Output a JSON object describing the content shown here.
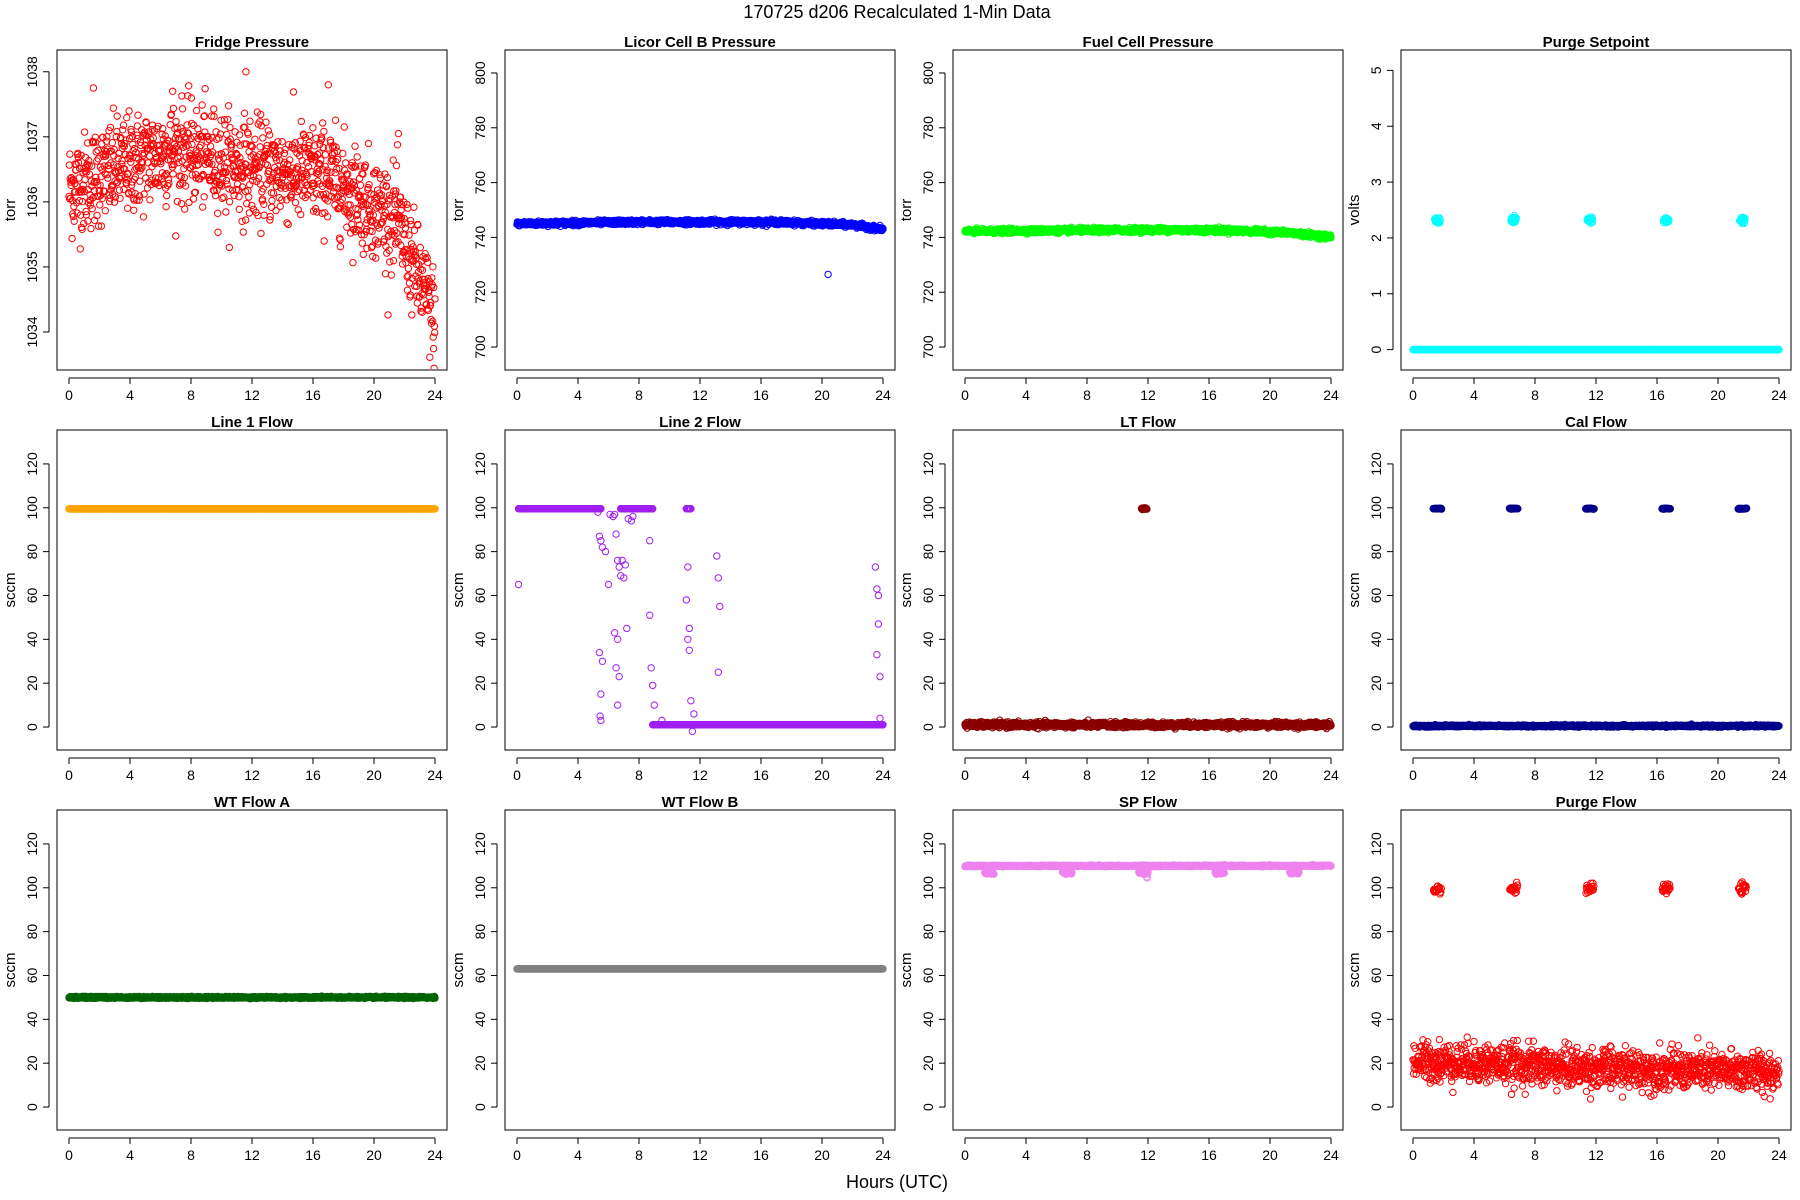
{
  "figure": {
    "title": "170725   d206   Recalculated 1-Min Data",
    "xlabel": "Hours (UTC)"
  },
  "chart_data": [
    {
      "type": "scatter",
      "title": "Fridge Pressure",
      "ylabel": "torr",
      "color": "#ff0000",
      "marker": "open",
      "xlim": [
        0,
        24
      ],
      "ylim": [
        1033.6,
        1038.15
      ],
      "xticks": [
        0,
        4,
        8,
        12,
        16,
        20,
        24
      ],
      "yticks": [
        1034,
        1035,
        1036,
        1037,
        1038
      ],
      "series": [
        {
          "kind": "noisy",
          "trend": [
            [
              0,
              1036.2
            ],
            [
              3,
              1036.5
            ],
            [
              7,
              1036.8
            ],
            [
              12,
              1036.5
            ],
            [
              17,
              1036.4
            ],
            [
              21.5,
              1035.7
            ],
            [
              24,
              1034.2
            ]
          ],
          "noise": 0.38,
          "count": 1200
        },
        {
          "kind": "points",
          "x": [
            11.6,
            17.0,
            1.6,
            6.8,
            21.6
          ],
          "y": [
            1038.0,
            1037.8,
            1037.75,
            1037.7,
            1037.05
          ]
        }
      ]
    },
    {
      "type": "scatter",
      "title": "Licor Cell B Pressure",
      "ylabel": "torr",
      "color": "#0000ff",
      "marker": "open",
      "xlim": [
        0,
        24
      ],
      "ylim": [
        696,
        804
      ],
      "xticks": [
        0,
        4,
        8,
        12,
        16,
        20,
        24
      ],
      "yticks": [
        700,
        720,
        740,
        760,
        780,
        800
      ],
      "series": [
        {
          "kind": "band",
          "trend": [
            [
              0,
              745
            ],
            [
              8,
              745.6
            ],
            [
              17,
              745.6
            ],
            [
              22,
              744.6
            ],
            [
              24,
              743
            ]
          ],
          "noise": 0.4,
          "count": 1400
        },
        {
          "kind": "points",
          "x": [
            20.4
          ],
          "y": [
            726.5
          ]
        }
      ]
    },
    {
      "type": "scatter",
      "title": "Fuel Cell Pressure",
      "ylabel": "torr",
      "color": "#00ff00",
      "marker": "open",
      "xlim": [
        0,
        24
      ],
      "ylim": [
        696,
        804
      ],
      "xticks": [
        0,
        4,
        8,
        12,
        16,
        20,
        24
      ],
      "yticks": [
        700,
        720,
        740,
        760,
        780,
        800
      ],
      "series": [
        {
          "kind": "band",
          "trend": [
            [
              0,
              742.2
            ],
            [
              12,
              742.8
            ],
            [
              17,
              742.6
            ],
            [
              21,
              741.8
            ],
            [
              24,
              740.2
            ]
          ],
          "noise": 0.4,
          "count": 1400
        }
      ]
    },
    {
      "type": "scatter",
      "title": "Purge Setpoint",
      "ylabel": "volts",
      "color": "#00ffff",
      "marker": "open",
      "xlim": [
        0,
        24
      ],
      "ylim": [
        -0.15,
        5.15
      ],
      "xticks": [
        0,
        4,
        8,
        12,
        16,
        20,
        24
      ],
      "yticks": [
        0,
        1,
        2,
        3,
        4,
        5
      ],
      "series": [
        {
          "kind": "band",
          "trend": [
            [
              0,
              0
            ],
            [
              24,
              0
            ]
          ],
          "noise": 0.0,
          "count": 1400
        },
        {
          "kind": "cluster",
          "centers": [
            1.6,
            6.6,
            11.6,
            16.6,
            21.6
          ],
          "width": 0.35,
          "y": 2.32,
          "noise": 0.03,
          "count": 18
        }
      ]
    },
    {
      "type": "scatter",
      "title": "Line 1 Flow",
      "ylabel": "sccm",
      "color": "#ffa500",
      "marker": "open",
      "xlim": [
        0,
        24
      ],
      "ylim": [
        -5,
        130
      ],
      "xticks": [
        0,
        4,
        8,
        12,
        16,
        20,
        24
      ],
      "yticks": [
        0,
        20,
        40,
        60,
        80,
        100,
        120
      ],
      "series": [
        {
          "kind": "band",
          "trend": [
            [
              0,
              99.5
            ],
            [
              24,
              99.5
            ]
          ],
          "noise": 0.0,
          "count": 1400
        }
      ]
    },
    {
      "type": "scatter",
      "title": "Line 2 Flow",
      "ylabel": "sccm",
      "color": "#a020f0",
      "marker": "open",
      "xlim": [
        0,
        24
      ],
      "ylim": [
        -5,
        130
      ],
      "xticks": [
        0,
        4,
        8,
        12,
        16,
        20,
        24
      ],
      "yticks": [
        0,
        20,
        40,
        60,
        80,
        100,
        120
      ],
      "series": [
        {
          "kind": "segment",
          "x0": 0.1,
          "x1": 5.5,
          "y": 99.6,
          "count": 330
        },
        {
          "kind": "segment",
          "x0": 6.8,
          "x1": 8.9,
          "y": 99.6,
          "count": 130
        },
        {
          "kind": "segment",
          "x0": 11.1,
          "x1": 11.4,
          "y": 99.6,
          "count": 20
        },
        {
          "kind": "segment",
          "x0": 8.9,
          "x1": 24,
          "y": 1.0,
          "count": 900
        },
        {
          "kind": "points",
          "x": [
            0.1,
            5.3,
            5.4,
            5.5,
            5.6,
            5.8,
            6.0,
            6.1,
            6.3,
            6.4,
            6.5,
            6.6,
            6.7,
            6.8,
            6.9,
            7.0,
            7.1,
            7.2,
            7.3,
            7.5,
            7.6,
            5.4,
            5.5,
            5.6,
            6.4,
            6.6,
            6.7,
            5.45,
            5.5,
            6.5,
            6.6,
            8.7,
            8.7,
            8.8,
            8.9,
            9.0,
            9.5,
            11.1,
            11.2,
            11.3,
            11.2,
            11.3,
            11.4,
            11.6,
            13.1,
            13.2,
            13.3,
            13.2,
            23.5,
            23.6,
            23.7,
            23.7,
            23.8,
            23.6,
            23.8,
            11.5
          ],
          "y": [
            65,
            98,
            87,
            85,
            82,
            80,
            65,
            97,
            96,
            97,
            88,
            76,
            73,
            69,
            76,
            68,
            74,
            45,
            95,
            94,
            96,
            34,
            15,
            30,
            43,
            40,
            23,
            5,
            3,
            27,
            10,
            85,
            51,
            27,
            19,
            10,
            3,
            58,
            73,
            45,
            40,
            35,
            12,
            6,
            78,
            68,
            55,
            25,
            73,
            63,
            60,
            47,
            23,
            33,
            4,
            -2
          ]
        }
      ]
    },
    {
      "type": "scatter",
      "title": "LT Flow",
      "ylabel": "sccm",
      "color": "#8b0000",
      "marker": "open",
      "xlim": [
        0,
        24
      ],
      "ylim": [
        -5,
        130
      ],
      "xticks": [
        0,
        4,
        8,
        12,
        16,
        20,
        24
      ],
      "yticks": [
        0,
        20,
        40,
        60,
        80,
        100,
        120
      ],
      "series": [
        {
          "kind": "band",
          "trend": [
            [
              0,
              1
            ],
            [
              24,
              1
            ]
          ],
          "noise": 0.6,
          "count": 1400
        },
        {
          "kind": "cluster",
          "centers": [
            11.75
          ],
          "width": 0.35,
          "y": 99.6,
          "noise": 0.2,
          "count": 25
        }
      ]
    },
    {
      "type": "scatter",
      "title": "Cal Flow",
      "ylabel": "sccm",
      "color": "#00008b",
      "marker": "open",
      "xlim": [
        0,
        24
      ],
      "ylim": [
        -5,
        130
      ],
      "xticks": [
        0,
        4,
        8,
        12,
        16,
        20,
        24
      ],
      "yticks": [
        0,
        20,
        40,
        60,
        80,
        100,
        120
      ],
      "series": [
        {
          "kind": "band",
          "trend": [
            [
              0,
              0.5
            ],
            [
              24,
              0.5
            ]
          ],
          "noise": 0.2,
          "count": 1400
        },
        {
          "kind": "cluster",
          "centers": [
            1.6,
            6.6,
            11.6,
            16.6,
            21.6
          ],
          "width": 0.55,
          "y": 99.6,
          "noise": 0.1,
          "count": 30
        }
      ]
    },
    {
      "type": "scatter",
      "title": "WT Flow A",
      "ylabel": "sccm",
      "color": "#006400",
      "marker": "open",
      "xlim": [
        0,
        24
      ],
      "ylim": [
        -5,
        130
      ],
      "xticks": [
        0,
        4,
        8,
        12,
        16,
        20,
        24
      ],
      "yticks": [
        0,
        20,
        40,
        60,
        80,
        100,
        120
      ],
      "series": [
        {
          "kind": "band",
          "trend": [
            [
              0,
              50
            ],
            [
              24,
              50
            ]
          ],
          "noise": 0.2,
          "count": 1400
        }
      ]
    },
    {
      "type": "scatter",
      "title": "WT Flow B",
      "ylabel": "sccm",
      "color": "#808080",
      "marker": "open",
      "xlim": [
        0,
        24
      ],
      "ylim": [
        -5,
        130
      ],
      "xticks": [
        0,
        4,
        8,
        12,
        16,
        20,
        24
      ],
      "yticks": [
        0,
        20,
        40,
        60,
        80,
        100,
        120
      ],
      "series": [
        {
          "kind": "band",
          "trend": [
            [
              0,
              63
            ],
            [
              24,
              63
            ]
          ],
          "noise": 0.0,
          "count": 1400
        }
      ]
    },
    {
      "type": "scatter",
      "title": "SP Flow",
      "ylabel": "sccm",
      "color": "#ee82ee",
      "marker": "open",
      "xlim": [
        0,
        24
      ],
      "ylim": [
        -5,
        130
      ],
      "xticks": [
        0,
        4,
        8,
        12,
        16,
        20,
        24
      ],
      "yticks": [
        0,
        20,
        40,
        60,
        80,
        100,
        120
      ],
      "series": [
        {
          "kind": "band",
          "trend": [
            [
              0,
              110
            ],
            [
              24,
              110
            ]
          ],
          "noise": 0.15,
          "count": 1400
        },
        {
          "kind": "cluster",
          "centers": [
            1.6,
            6.7,
            11.7,
            16.7,
            21.6
          ],
          "width": 0.6,
          "y": 107,
          "noise": 0.4,
          "count": 25
        },
        {
          "kind": "points",
          "x": [
            11.9,
            11.95
          ],
          "y": [
            105,
            104.5
          ]
        }
      ]
    },
    {
      "type": "scatter",
      "title": "Purge Flow",
      "ylabel": "sccm",
      "color": "#ff0000",
      "marker": "open",
      "xlim": [
        0,
        24
      ],
      "ylim": [
        -5,
        130
      ],
      "xticks": [
        0,
        4,
        8,
        12,
        16,
        20,
        24
      ],
      "yticks": [
        0,
        20,
        40,
        60,
        80,
        100,
        120
      ],
      "series": [
        {
          "kind": "noisy",
          "trend": [
            [
              0,
              21
            ],
            [
              5,
              20
            ],
            [
              10,
              18
            ],
            [
              16,
              17
            ],
            [
              24,
              16
            ]
          ],
          "noise": 4.5,
          "count": 1250
        },
        {
          "kind": "cluster",
          "centers": [
            1.6,
            6.6,
            11.6,
            16.6,
            21.6
          ],
          "width": 0.5,
          "y": 99.5,
          "noise": 1.0,
          "count": 20
        },
        {
          "kind": "points",
          "x": [
            21.5
          ],
          "y": [
            102
          ]
        }
      ]
    }
  ]
}
